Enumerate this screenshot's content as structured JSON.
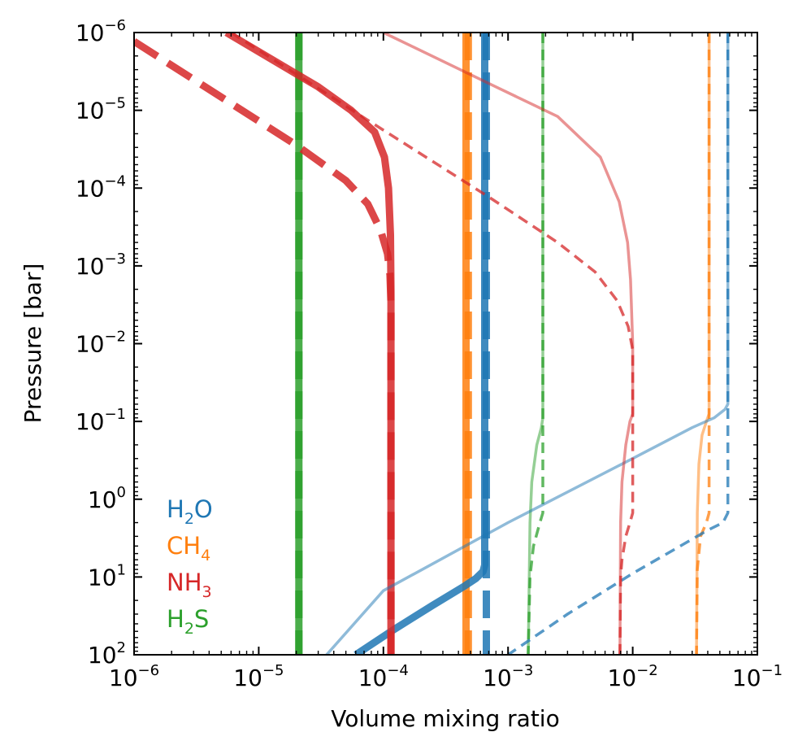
{
  "chart_data": {
    "type": "line",
    "title": "",
    "xlabel": "Volume mixing ratio",
    "ylabel": "Pressure [bar]",
    "xscale": "log",
    "yscale": "log",
    "xlim": [
      1e-06,
      0.1
    ],
    "ylim_top_to_bottom": [
      1e-06,
      100.0
    ],
    "grid": false,
    "legend_placement": "bottom-left",
    "x_ticks": [
      {
        "base": "10",
        "exp": "−6"
      },
      {
        "base": "10",
        "exp": "−5"
      },
      {
        "base": "10",
        "exp": "−4"
      },
      {
        "base": "10",
        "exp": "−3"
      },
      {
        "base": "10",
        "exp": "−2"
      },
      {
        "base": "10",
        "exp": "−1"
      }
    ],
    "y_ticks": [
      {
        "base": "10",
        "exp": "−6"
      },
      {
        "base": "10",
        "exp": "−5"
      },
      {
        "base": "10",
        "exp": "−4"
      },
      {
        "base": "10",
        "exp": "−3"
      },
      {
        "base": "10",
        "exp": "−2"
      },
      {
        "base": "10",
        "exp": "−1"
      },
      {
        "base": "10",
        "exp": "0"
      },
      {
        "base": "10",
        "exp": "1"
      },
      {
        "base": "10",
        "exp": "2"
      }
    ],
    "colors": {
      "H2O": "#1f77b4",
      "CH4": "#ff7f0e",
      "NH3": "#d62728",
      "H2S": "#2ca02c"
    },
    "legend": [
      {
        "main": "H",
        "sub": "2",
        "rest": "O",
        "color": "#1f77b4"
      },
      {
        "main": "CH",
        "sub": "4",
        "rest": "",
        "color": "#ff7f0e"
      },
      {
        "main": "NH",
        "sub": "3",
        "rest": "",
        "color": "#d62728"
      },
      {
        "main": "H",
        "sub": "2",
        "rest": "S",
        "color": "#2ca02c"
      }
    ],
    "series": [
      {
        "name": "H2S low-abundance solid",
        "species": "H2S",
        "color": "#2ca02c",
        "style": "solid",
        "weight": "thick",
        "opacity": 0.85,
        "points": [
          [
            2.1e-05,
            1e-06
          ],
          [
            2.1e-05,
            100
          ]
        ]
      },
      {
        "name": "H2S low-abundance dashed",
        "species": "H2S",
        "color": "#2ca02c",
        "style": "dashed",
        "weight": "thick",
        "opacity": 0.85,
        "points": [
          [
            2.1e-05,
            1e-06
          ],
          [
            2.1e-05,
            100
          ]
        ]
      },
      {
        "name": "CH4 low-abundance solid",
        "species": "CH4",
        "color": "#ff7f0e",
        "style": "solid",
        "weight": "thick",
        "opacity": 0.85,
        "points": [
          [
            0.00046,
            1e-06
          ],
          [
            0.00046,
            100
          ]
        ]
      },
      {
        "name": "CH4 low-abundance dashed",
        "species": "CH4",
        "color": "#ff7f0e",
        "style": "dashed",
        "weight": "thick",
        "opacity": 0.85,
        "points": [
          [
            0.00048,
            1e-06
          ],
          [
            0.00048,
            100
          ]
        ]
      },
      {
        "name": "H2O low-abundance solid",
        "species": "H2O",
        "color": "#1f77b4",
        "style": "solid",
        "weight": "thick",
        "opacity": 0.85,
        "points": [
          [
            0.00065,
            1e-06
          ],
          [
            0.00065,
            7.0
          ],
          [
            0.00063,
            8.5
          ],
          [
            0.00055,
            10.5
          ],
          [
            0.00045,
            13
          ],
          [
            0.00025,
            23
          ],
          [
            0.00012,
            48
          ],
          [
            6e-05,
            100
          ]
        ]
      },
      {
        "name": "H2O low-abundance dashed",
        "species": "H2O",
        "color": "#1f77b4",
        "style": "dashed",
        "weight": "thick",
        "opacity": 0.85,
        "points": [
          [
            0.00067,
            1e-06
          ],
          [
            0.00067,
            100
          ]
        ]
      },
      {
        "name": "NH3 low-abundance solid",
        "species": "NH3",
        "color": "#d62728",
        "style": "solid",
        "weight": "thick",
        "opacity": 0.85,
        "points": [
          [
            5.5e-06,
            1e-06
          ],
          [
            3e-05,
            5e-06
          ],
          [
            5.5e-05,
            1e-05
          ],
          [
            8.5e-05,
            1.9e-05
          ],
          [
            0.000102,
            4e-05
          ],
          [
            0.00011,
            0.0001
          ],
          [
            0.000114,
            0.0004
          ],
          [
            0.000115,
            0.002
          ],
          [
            0.000115,
            100
          ]
        ]
      },
      {
        "name": "NH3 low-abundance dashed",
        "species": "NH3",
        "color": "#d62728",
        "style": "dashed",
        "weight": "thick",
        "opacity": 0.85,
        "points": [
          [
            1e-06,
            1.3e-06
          ],
          [
            2e-05,
            2.8e-05
          ],
          [
            5e-05,
            8e-05
          ],
          [
            7.5e-05,
            0.00016
          ],
          [
            9.5e-05,
            0.00035
          ],
          [
            0.000108,
            0.0007
          ],
          [
            0.000113,
            0.0013
          ],
          [
            0.000115,
            0.003
          ],
          [
            0.000115,
            100
          ]
        ]
      },
      {
        "name": "H2S high-abundance solid",
        "species": "H2S",
        "color": "#2ca02c",
        "style": "solid",
        "weight": "thin",
        "opacity": 0.5,
        "points": [
          [
            0.0019,
            1e-06
          ],
          [
            0.0019,
            0.09
          ],
          [
            0.00185,
            0.12
          ],
          [
            0.0017,
            0.2
          ],
          [
            0.00155,
            0.6
          ],
          [
            0.0015,
            2.0
          ],
          [
            0.00145,
            100
          ]
        ]
      },
      {
        "name": "H2S high-abundance dashed",
        "species": "H2S",
        "color": "#2ca02c",
        "style": "dashed",
        "weight": "thin",
        "opacity": 0.75,
        "points": [
          [
            0.0019,
            1e-06
          ],
          [
            0.0019,
            1.5
          ],
          [
            0.0018,
            2.0
          ],
          [
            0.0016,
            4.0
          ],
          [
            0.0015,
            10
          ],
          [
            0.00145,
            100
          ]
        ]
      },
      {
        "name": "CH4 high-abundance solid",
        "species": "CH4",
        "color": "#ff7f0e",
        "style": "solid",
        "weight": "thin",
        "opacity": 0.5,
        "points": [
          [
            0.041,
            1e-06
          ],
          [
            0.041,
            0.08
          ],
          [
            0.039,
            0.1
          ],
          [
            0.036,
            0.15
          ],
          [
            0.034,
            0.35
          ],
          [
            0.033,
            1.5
          ],
          [
            0.0325,
            100
          ]
        ]
      },
      {
        "name": "CH4 high-abundance dashed",
        "species": "CH4",
        "color": "#ff7f0e",
        "style": "dashed",
        "weight": "thin",
        "opacity": 0.75,
        "points": [
          [
            0.041,
            1e-06
          ],
          [
            0.041,
            1.5
          ],
          [
            0.039,
            2.0
          ],
          [
            0.035,
            3.0
          ],
          [
            0.033,
            8.0
          ],
          [
            0.0325,
            100
          ]
        ]
      },
      {
        "name": "H2O high-abundance solid",
        "species": "H2O",
        "color": "#1f77b4",
        "style": "solid",
        "weight": "thin",
        "opacity": 0.5,
        "points": [
          [
            0.058,
            1e-06
          ],
          [
            0.058,
            0.06
          ],
          [
            0.055,
            0.07
          ],
          [
            0.045,
            0.09
          ],
          [
            0.03,
            0.12
          ],
          [
            0.01,
            0.3
          ],
          [
            0.001,
            2.0
          ],
          [
            0.0001,
            15
          ],
          [
            3.5e-05,
            100
          ]
        ]
      },
      {
        "name": "H2O high-abundance dashed",
        "species": "H2O",
        "color": "#1f77b4",
        "style": "dashed",
        "weight": "thin",
        "opacity": 0.75,
        "points": [
          [
            0.058,
            1e-06
          ],
          [
            0.058,
            1.5
          ],
          [
            0.053,
            2.0
          ],
          [
            0.04,
            2.5
          ],
          [
            0.01,
            9.0
          ],
          [
            0.003,
            30
          ],
          [
            0.001,
            100
          ]
        ]
      },
      {
        "name": "NH3 high-abundance solid",
        "species": "NH3",
        "color": "#d62728",
        "style": "solid",
        "weight": "thin",
        "opacity": 0.5,
        "points": [
          [
            0.0001,
            1e-06
          ],
          [
            0.0008,
            5e-06
          ],
          [
            0.0025,
            1.2e-05
          ],
          [
            0.0055,
            4e-05
          ],
          [
            0.0078,
            0.00015
          ],
          [
            0.0091,
            0.0005
          ],
          [
            0.0096,
            0.0015
          ],
          [
            0.01,
            0.01
          ],
          [
            0.01,
            0.08
          ],
          [
            0.0095,
            0.1
          ],
          [
            0.0088,
            0.2
          ],
          [
            0.0082,
            0.6
          ],
          [
            0.008,
            2.0
          ],
          [
            0.0079,
            100
          ]
        ]
      },
      {
        "name": "NH3 high-abundance dashed",
        "species": "NH3",
        "color": "#d62728",
        "style": "dashed",
        "weight": "thin",
        "opacity": 0.75,
        "points": [
          [
            6e-06,
            1e-06
          ],
          [
            0.0001,
            1.8e-05
          ],
          [
            0.0007,
            0.00013
          ],
          [
            0.0025,
            0.0005
          ],
          [
            0.005,
            0.0012
          ],
          [
            0.0075,
            0.0028
          ],
          [
            0.0092,
            0.006
          ],
          [
            0.01,
            0.012
          ],
          [
            0.01,
            1.5
          ],
          [
            0.0095,
            2.0
          ],
          [
            0.0088,
            3.0
          ],
          [
            0.0082,
            6.0
          ],
          [
            0.008,
            10
          ],
          [
            0.0079,
            100
          ]
        ]
      }
    ]
  }
}
